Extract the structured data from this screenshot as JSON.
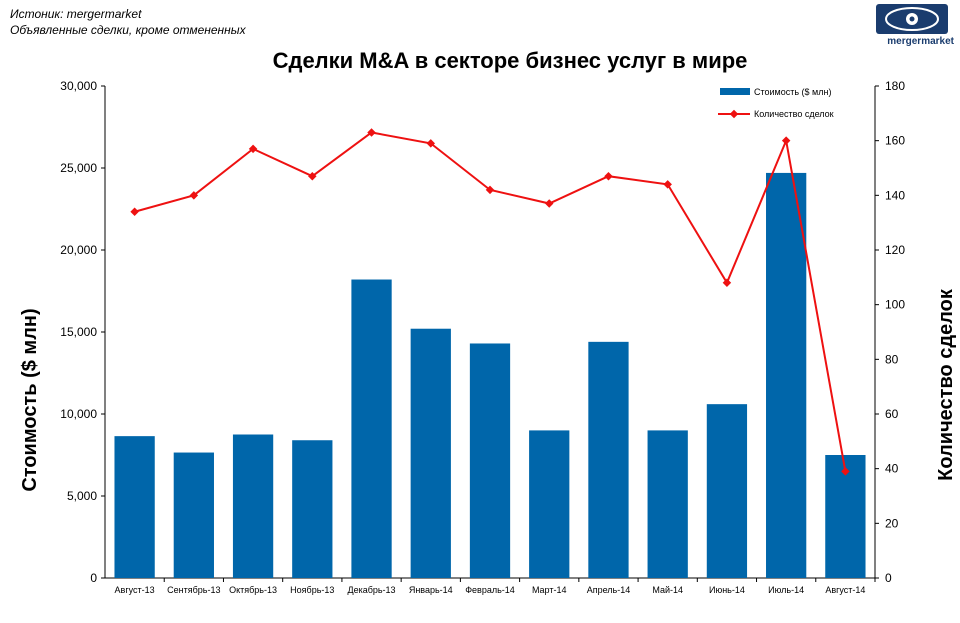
{
  "source": {
    "line1": "Истоник: mergermarket",
    "line2": "Объявленные сделки, кроме отмененных"
  },
  "logo": {
    "text": "mergermarket"
  },
  "colors": {
    "bars": "#0066aa",
    "line": "#ee1111"
  },
  "chart_data": {
    "type": "bar",
    "title": "Сделки M&A в секторе бизнес услуг в мире",
    "ylabel": "Стоимость  ($ млн)",
    "y2label": "Количество сделок",
    "ylim": [
      0,
      30000
    ],
    "y2lim": [
      0,
      180
    ],
    "yticks": [
      "0",
      "5,000",
      "10,000",
      "15,000",
      "20,000",
      "25,000",
      "30,000"
    ],
    "y2ticks": [
      "0",
      "20",
      "40",
      "60",
      "80",
      "100",
      "120",
      "140",
      "160",
      "180"
    ],
    "legend_position": "top-right",
    "categories": [
      "Август-13",
      "Сентябрь-13",
      "Октябрь-13",
      "Ноябрь-13",
      "Декабрь-13",
      "Январь-14",
      "Февраль-14",
      "Март-14",
      "Апрель-14",
      "Май-14",
      "Июнь-14",
      "Июль-14",
      "Август-14"
    ],
    "series": [
      {
        "name": "Стоимость ($ млн)",
        "type": "bar",
        "axis": "left",
        "values": [
          8650,
          7650,
          8750,
          8400,
          18200,
          15200,
          14300,
          9000,
          14400,
          9000,
          10600,
          24700,
          7500
        ]
      },
      {
        "name": "Количество сделок",
        "type": "line",
        "axis": "right",
        "values": [
          134,
          140,
          157,
          147,
          163,
          159,
          142,
          137,
          147,
          144,
          108,
          160,
          39
        ]
      }
    ]
  }
}
